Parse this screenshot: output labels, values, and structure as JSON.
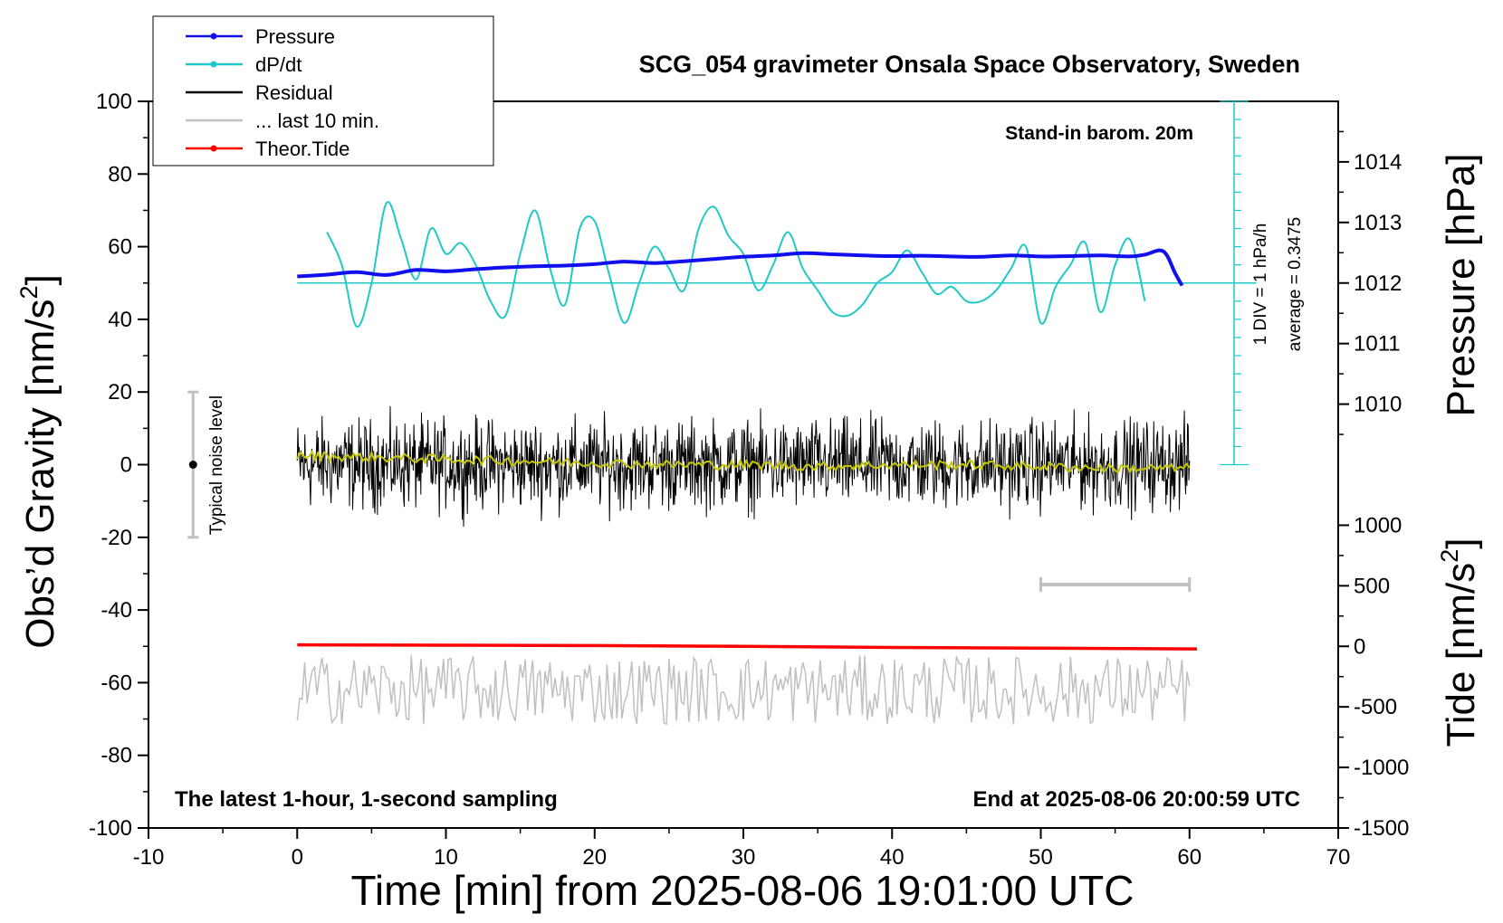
{
  "chart_data": {
    "type": "line",
    "title": "SCG_054 gravimeter Onsala Space Observatory, Sweden",
    "xlabel": "Time [min] from 2025-08-06 19:01:00 UTC",
    "ylabel_left": "Obs’d Gravity [nm/s",
    "ylabel_left_sup": "2",
    "ylabel_left_close": "]",
    "ylabel_right_top": "Pressure [hPa]",
    "ylabel_right_bottom": "Tide [nm/s",
    "ylabel_right_bottom_sup": "2",
    "ylabel_right_bottom_close": "]",
    "xlim": [
      -10,
      70
    ],
    "ylim": [
      -100,
      100
    ],
    "xticks": [
      "-10",
      "0",
      "10",
      "20",
      "30",
      "40",
      "50",
      "60",
      "70"
    ],
    "yticks_left": [
      "100",
      "80",
      "60",
      "40",
      "20",
      "0",
      "-20",
      "-40",
      "-60",
      "-80",
      "-100"
    ],
    "pressure_axis": {
      "ticks": [
        "1014",
        "1013",
        "1012",
        "1011",
        "1010"
      ],
      "tick_values": [
        1014,
        1013,
        1012,
        1011,
        1010
      ],
      "gravity_at_1012": 50,
      "gravity_per_hpa": 16.67
    },
    "tide_axis": {
      "ticks": [
        "1000",
        "500",
        "0",
        "-500",
        "-1000",
        "-1500"
      ],
      "tick_values": [
        1000,
        500,
        0,
        -500,
        -1000,
        -1500
      ],
      "gravity_at_0": -50,
      "gravity_per_unit": 0.03333
    },
    "legend": {
      "position": "top-left",
      "entries": [
        {
          "label": "Pressure",
          "color": "#1010ee",
          "marker": true
        },
        {
          "label": "dP/dt",
          "color": "#20c8c8",
          "marker": true
        },
        {
          "label": "Residual",
          "color": "#000000",
          "marker": false
        },
        {
          "label": "... last 10 min.",
          "color": "#c0c0c0",
          "marker": false
        },
        {
          "label": "Theor.Tide",
          "color": "#ff0000",
          "marker": true
        }
      ]
    },
    "annotations": {
      "top_right": "Stand-in barom. 20m",
      "dpdt_scale": "1 DIV = 1 hPa/h",
      "dpdt_average": "average = 0.3475",
      "noise_label": "Typical noise level",
      "bottom_left": "The latest 1-hour, 1-second sampling",
      "bottom_right": "End at 2025-08-06 20:00:59 UTC"
    },
    "noise_bar": {
      "x": -7,
      "y_low": -20,
      "y_high": 20,
      "center": 0
    },
    "dpdt_reference": {
      "x_start": 0,
      "x_end": 64.5,
      "y": 50
    },
    "dpdt_scale_bar": {
      "x": 63,
      "y_low": 0,
      "y_high": 100,
      "div": 5
    },
    "last10_range": {
      "x_start": 50,
      "x_end": 60,
      "y": -33
    },
    "colors": {
      "pressure": "#1010ee",
      "dpdt": "#20c8c8",
      "residual": "#000000",
      "residual_smooth": "#c8c800",
      "last10": "#c0c0c0",
      "tide": "#ff0000",
      "noise_bar": "#c0c0c0"
    },
    "series": [
      {
        "name": "Pressure",
        "x": [
          0,
          2,
          4,
          6,
          8,
          10,
          12,
          14,
          16,
          18,
          20,
          22,
          24,
          26,
          28,
          30,
          32,
          34,
          36,
          38,
          40,
          42,
          44,
          46,
          48,
          50,
          52,
          54,
          56,
          57,
          58,
          58.5,
          59,
          59.5
        ],
        "y": [
          51.8,
          52.3,
          53.0,
          52.2,
          53.6,
          53.2,
          53.8,
          54.3,
          54.6,
          54.8,
          55.2,
          55.9,
          55.5,
          56.0,
          56.6,
          57.2,
          57.6,
          58.2,
          57.9,
          57.6,
          57.4,
          57.5,
          57.3,
          57.2,
          57.6,
          57.3,
          57.4,
          57.6,
          57.3,
          57.8,
          59.0,
          57.5,
          53.0,
          49.3
        ]
      },
      {
        "name": "dP/dt",
        "x": [
          2,
          3,
          4,
          5,
          6,
          7,
          8,
          9,
          10,
          11,
          12,
          13,
          14,
          15,
          16,
          17,
          18,
          19,
          20,
          21,
          22,
          23,
          24,
          25,
          26,
          27,
          28,
          29,
          30,
          31,
          32,
          33,
          34,
          35,
          36,
          37,
          38,
          39,
          40,
          41,
          42,
          43,
          44,
          45,
          46,
          47,
          48,
          49,
          50,
          51,
          52,
          53,
          54,
          55,
          56,
          57
        ],
        "y": [
          64,
          55,
          38,
          50,
          72,
          62,
          51,
          65,
          58,
          61,
          55,
          45,
          41,
          58,
          70,
          54,
          44,
          65,
          67,
          52,
          39,
          50,
          60,
          54,
          48,
          65,
          71,
          63,
          58,
          48,
          55,
          64,
          54,
          48,
          42,
          41,
          44,
          50,
          53,
          59,
          53,
          47,
          49,
          45,
          45,
          48,
          54,
          60,
          39,
          49,
          55,
          61,
          42,
          55,
          62,
          45
        ]
      },
      {
        "name": "Theor.Tide",
        "x": [
          0,
          10,
          20,
          30,
          40,
          50,
          60.5
        ],
        "y": [
          -49.6,
          -49.7,
          -49.8,
          -50.0,
          -50.3,
          -50.5,
          -50.7
        ]
      }
    ],
    "residual": {
      "x_range": [
        0,
        60
      ],
      "amplitude": 10,
      "center": 0
    },
    "residual_smooth": {
      "x": [
        0,
        5,
        10,
        15,
        20,
        25,
        30,
        35,
        40,
        45,
        50,
        55,
        60
      ],
      "y": [
        2.5,
        2,
        1.5,
        1,
        0.5,
        0,
        0,
        -0.5,
        0,
        0,
        -0.5,
        -1,
        -1
      ]
    },
    "last10_series": {
      "x_range": [
        0,
        60
      ],
      "center": -62,
      "amplitude": 10
    }
  }
}
